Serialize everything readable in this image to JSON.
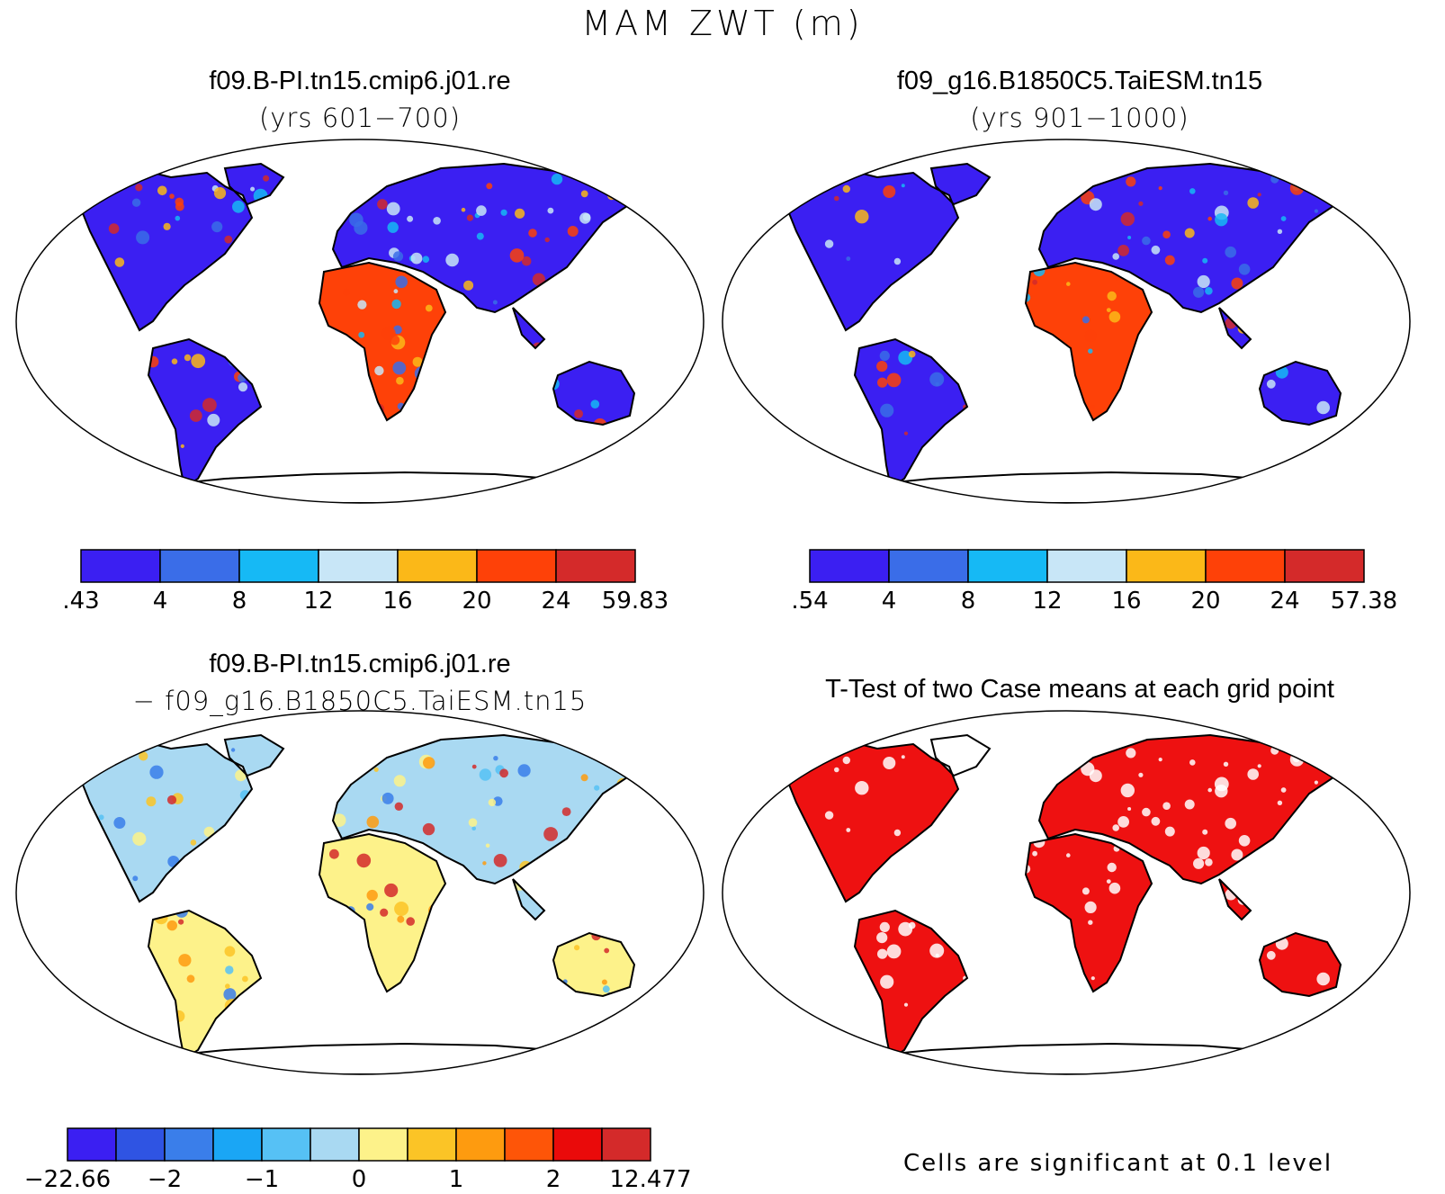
{
  "figure": {
    "title": "MAM ZWT (m)"
  },
  "panels": {
    "case1": {
      "title": "f09.B-PI.tn15.cmip6.j01.re",
      "subtitle": "(yrs 601−700)",
      "colorbar": {
        "colors": [
          "#3b1ff2",
          "#3a6de8",
          "#16b9f5",
          "#c8e6f7",
          "#fbb818",
          "#fe4108",
          "#d42a2a"
        ],
        "labels": [
          ".43",
          "4",
          "8",
          "12",
          "16",
          "20",
          "24",
          "59.83"
        ]
      }
    },
    "case2": {
      "title": "f09_g16.B1850C5.TaiESM.tn15",
      "subtitle": "(yrs 901−1000)",
      "colorbar": {
        "colors": [
          "#3b1ff2",
          "#3a6de8",
          "#16b9f5",
          "#c8e6f7",
          "#fbb818",
          "#fe4108",
          "#d42a2a"
        ],
        "labels": [
          ".54",
          "4",
          "8",
          "12",
          "16",
          "20",
          "24",
          "57.38"
        ]
      }
    },
    "diff": {
      "title": "f09.B-PI.tn15.cmip6.j01.re",
      "subtitle": "− f09_g16.B1850C5.TaiESM.tn15",
      "colorbar": {
        "colors": [
          "#3b1ff2",
          "#2f54e3",
          "#3a7eea",
          "#1aa6f5",
          "#56c1f5",
          "#a9d9f2",
          "#fdf28a",
          "#fbc426",
          "#fe9b0f",
          "#fe5508",
          "#ea0a0a",
          "#d42a2a"
        ],
        "labels": [
          "−22.66",
          "−2",
          "−1",
          "0",
          "1",
          "2",
          "12.477"
        ]
      }
    },
    "ttest": {
      "title": "T-Test of two Case means at each grid point",
      "note": "Cells are significant at 0.1 level",
      "sig_color": "#ee1111"
    }
  }
}
